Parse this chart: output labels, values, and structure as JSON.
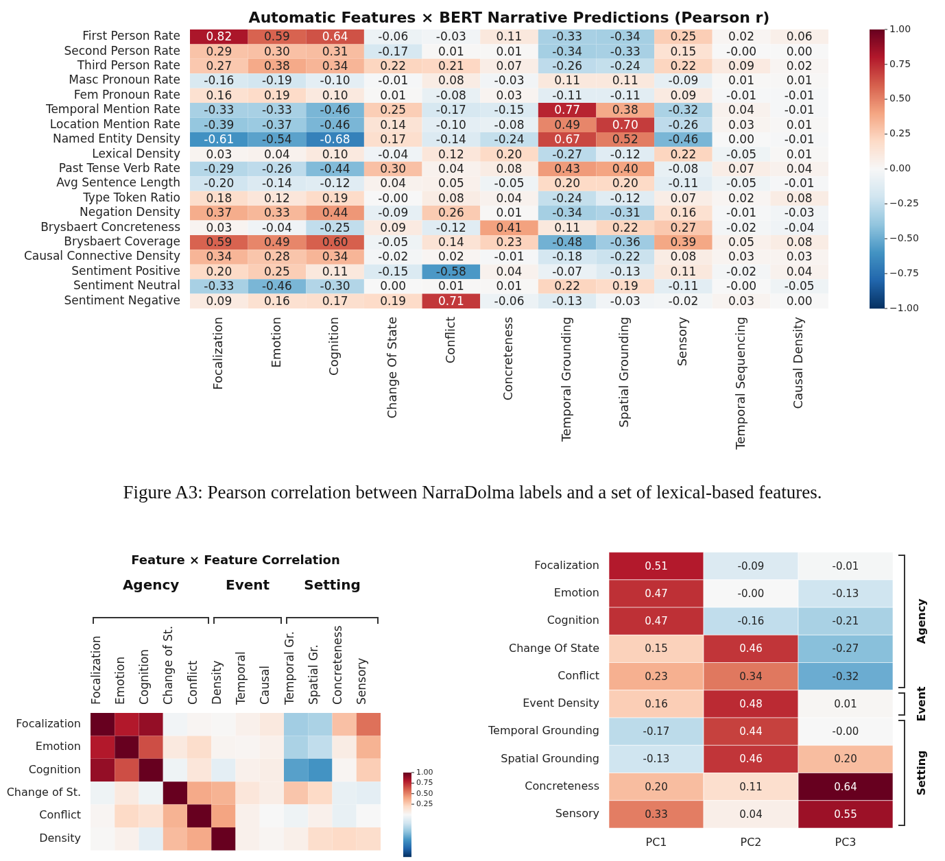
{
  "chart_data": [
    {
      "type": "heatmap",
      "title": "Automatic Features × BERT Narrative Predictions (Pearson r)",
      "categories": [
        "Focalization",
        "Emotion",
        "Cognition",
        "Change Of State",
        "Conflict",
        "Concreteness",
        "Temporal Grounding",
        "Spatial Grounding",
        "Sensory",
        "Temporal Sequencing",
        "Causal Density"
      ],
      "y_categories": [
        "First Person Rate",
        "Second Person Rate",
        "Third Person Rate",
        "Masc Pronoun Rate",
        "Fem Pronoun Rate",
        "Temporal Mention Rate",
        "Location Mention Rate",
        "Named Entity Density",
        "Lexical Density",
        "Past Tense Verb Rate",
        "Avg Sentence Length",
        "Type Token Ratio",
        "Negation Density",
        "Brysbaert Concreteness",
        "Brysbaert Coverage",
        "Causal Connective Density",
        "Sentiment Positive",
        "Sentiment Neutral",
        "Sentiment Negative"
      ],
      "cells": [
        [
          0.82,
          0.59,
          0.64,
          -0.06,
          -0.03,
          0.11,
          -0.33,
          -0.34,
          0.25,
          0.02,
          0.06
        ],
        [
          0.29,
          0.3,
          0.31,
          -0.17,
          0.01,
          0.01,
          -0.34,
          -0.33,
          0.15,
          -0.0,
          0.0
        ],
        [
          0.27,
          0.38,
          0.34,
          0.22,
          0.21,
          0.07,
          -0.26,
          -0.24,
          0.22,
          0.09,
          0.02
        ],
        [
          -0.16,
          -0.19,
          -0.1,
          -0.01,
          0.08,
          -0.03,
          0.11,
          0.11,
          -0.09,
          0.01,
          0.01
        ],
        [
          0.16,
          0.19,
          0.1,
          0.01,
          -0.08,
          0.03,
          -0.11,
          -0.11,
          0.09,
          -0.01,
          -0.01
        ],
        [
          -0.33,
          -0.33,
          -0.46,
          0.25,
          -0.17,
          -0.15,
          0.77,
          0.38,
          -0.32,
          0.04,
          -0.01
        ],
        [
          -0.39,
          -0.37,
          -0.46,
          0.14,
          -0.1,
          -0.08,
          0.49,
          0.7,
          -0.26,
          0.03,
          0.01
        ],
        [
          -0.61,
          -0.54,
          -0.68,
          0.17,
          -0.14,
          -0.24,
          0.67,
          0.52,
          -0.46,
          0.0,
          -0.01
        ],
        [
          0.03,
          0.04,
          0.1,
          -0.04,
          0.12,
          0.2,
          -0.27,
          -0.12,
          0.22,
          -0.05,
          0.01
        ],
        [
          -0.29,
          -0.26,
          -0.44,
          0.3,
          0.04,
          0.08,
          0.43,
          0.4,
          -0.08,
          0.07,
          0.04
        ],
        [
          -0.2,
          -0.14,
          -0.12,
          0.04,
          0.05,
          -0.05,
          0.2,
          0.2,
          -0.11,
          -0.05,
          -0.01
        ],
        [
          0.18,
          0.12,
          0.19,
          -0.0,
          0.08,
          0.04,
          -0.24,
          -0.12,
          0.07,
          0.02,
          0.08
        ],
        [
          0.37,
          0.33,
          0.44,
          -0.09,
          0.26,
          0.01,
          -0.34,
          -0.31,
          0.16,
          -0.01,
          -0.03
        ],
        [
          0.03,
          -0.04,
          -0.25,
          0.09,
          -0.12,
          0.41,
          0.11,
          0.22,
          0.27,
          -0.02,
          -0.04
        ],
        [
          0.59,
          0.49,
          0.6,
          -0.05,
          0.14,
          0.23,
          -0.48,
          -0.36,
          0.39,
          0.05,
          0.08
        ],
        [
          0.34,
          0.28,
          0.34,
          -0.02,
          0.02,
          -0.01,
          -0.18,
          -0.22,
          0.08,
          0.03,
          0.03
        ],
        [
          0.2,
          0.25,
          0.11,
          -0.15,
          -0.58,
          0.04,
          -0.07,
          -0.13,
          0.11,
          -0.02,
          0.04
        ],
        [
          -0.33,
          -0.46,
          -0.3,
          0.0,
          0.01,
          0.01,
          0.22,
          0.19,
          -0.11,
          -0.0,
          -0.05
        ],
        [
          0.09,
          0.16,
          0.17,
          0.19,
          0.71,
          -0.06,
          -0.13,
          -0.03,
          -0.02,
          0.03,
          0.0
        ]
      ],
      "cell_labels": [
        [
          "0.82",
          "0.59",
          "0.64",
          "-0.06",
          "-0.03",
          "0.11",
          "-0.33",
          "-0.34",
          "0.25",
          "0.02",
          "0.06"
        ],
        [
          "0.29",
          "0.30",
          "0.31",
          "-0.17",
          "0.01",
          "0.01",
          "-0.34",
          "-0.33",
          "0.15",
          "-0.00",
          "0.00"
        ],
        [
          "0.27",
          "0.38",
          "0.34",
          "0.22",
          "0.21",
          "0.07",
          "-0.26",
          "-0.24",
          "0.22",
          "0.09",
          "0.02"
        ],
        [
          "-0.16",
          "-0.19",
          "-0.10",
          "-0.01",
          "0.08",
          "-0.03",
          "0.11",
          "0.11",
          "-0.09",
          "0.01",
          "0.01"
        ],
        [
          "0.16",
          "0.19",
          "0.10",
          "0.01",
          "-0.08",
          "0.03",
          "-0.11",
          "-0.11",
          "0.09",
          "-0.01",
          "-0.01"
        ],
        [
          "-0.33",
          "-0.33",
          "-0.46",
          "0.25",
          "-0.17",
          "-0.15",
          "0.77",
          "0.38",
          "-0.32",
          "0.04",
          "-0.01"
        ],
        [
          "-0.39",
          "-0.37",
          "-0.46",
          "0.14",
          "-0.10",
          "-0.08",
          "0.49",
          "0.70",
          "-0.26",
          "0.03",
          "0.01"
        ],
        [
          "-0.61",
          "-0.54",
          "-0.68",
          "0.17",
          "-0.14",
          "-0.24",
          "0.67",
          "0.52",
          "-0.46",
          "0.00",
          "-0.01"
        ],
        [
          "0.03",
          "0.04",
          "0.10",
          "-0.04",
          "0.12",
          "0.20",
          "-0.27",
          "-0.12",
          "0.22",
          "-0.05",
          "0.01"
        ],
        [
          "-0.29",
          "-0.26",
          "-0.44",
          "0.30",
          "0.04",
          "0.08",
          "0.43",
          "0.40",
          "-0.08",
          "0.07",
          "0.04"
        ],
        [
          "-0.20",
          "-0.14",
          "-0.12",
          "0.04",
          "0.05",
          "-0.05",
          "0.20",
          "0.20",
          "-0.11",
          "-0.05",
          "-0.01"
        ],
        [
          "0.18",
          "0.12",
          "0.19",
          "-0.00",
          "0.08",
          "0.04",
          "-0.24",
          "-0.12",
          "0.07",
          "0.02",
          "0.08"
        ],
        [
          "0.37",
          "0.33",
          "0.44",
          "-0.09",
          "0.26",
          "0.01",
          "-0.34",
          "-0.31",
          "0.16",
          "-0.01",
          "-0.03"
        ],
        [
          "0.03",
          "-0.04",
          "-0.25",
          "0.09",
          "-0.12",
          "0.41",
          "0.11",
          "0.22",
          "0.27",
          "-0.02",
          "-0.04"
        ],
        [
          "0.59",
          "0.49",
          "0.60",
          "-0.05",
          "0.14",
          "0.23",
          "-0.48",
          "-0.36",
          "0.39",
          "0.05",
          "0.08"
        ],
        [
          "0.34",
          "0.28",
          "0.34",
          "-0.02",
          "0.02",
          "-0.01",
          "-0.18",
          "-0.22",
          "0.08",
          "0.03",
          "0.03"
        ],
        [
          "0.20",
          "0.25",
          "0.11",
          "-0.15",
          "-0.58",
          "0.04",
          "-0.07",
          "-0.13",
          "0.11",
          "-0.02",
          "0.04"
        ],
        [
          "-0.33",
          "-0.46",
          "-0.30",
          "0.00",
          "0.01",
          "0.01",
          "0.22",
          "0.19",
          "-0.11",
          "-0.00",
          "-0.05"
        ],
        [
          "0.09",
          "0.16",
          "0.17",
          "0.19",
          "0.71",
          "-0.06",
          "-0.13",
          "-0.03",
          "-0.02",
          "0.03",
          "0.00"
        ]
      ],
      "clim": [
        -1,
        1
      ],
      "cticks": [
        {
          "value": 1,
          "label": "1.00"
        },
        {
          "value": 0.75,
          "label": "0.75"
        },
        {
          "value": 0.5,
          "label": "0.50"
        },
        {
          "value": 0.25,
          "label": "0.25"
        },
        {
          "value": 0,
          "label": "0.00"
        },
        {
          "value": -0.25,
          "label": "−0.25"
        },
        {
          "value": -0.5,
          "label": "−0.50"
        },
        {
          "value": -0.75,
          "label": "−0.75"
        },
        {
          "value": -1,
          "label": "−1.00"
        }
      ],
      "annotations": [
        "Figure A3: Pearson correlation between NarraDolma labels and a set of lexical-based features."
      ]
    },
    {
      "type": "heatmap",
      "title": "Feature × Feature Correlation",
      "categories": [
        "Focalization",
        "Emotion",
        "Cognition",
        "Change of St.",
        "Conflict",
        "Density",
        "Temporal",
        "Causal",
        "Temporal Gr.",
        "Spatial Gr.",
        "Concreteness",
        "Sensory"
      ],
      "y_categories": [
        "Focalization",
        "Emotion",
        "Cognition",
        "Change of St.",
        "Conflict",
        "Density"
      ],
      "cells": [
        [
          1.0,
          0.8,
          0.88,
          -0.03,
          0.02,
          0.01,
          0.05,
          0.1,
          -0.35,
          -0.32,
          0.3,
          0.55
        ],
        [
          0.8,
          1.0,
          0.65,
          0.1,
          0.18,
          0.03,
          0.02,
          0.05,
          -0.32,
          -0.25,
          0.08,
          0.35
        ],
        [
          0.88,
          0.65,
          1.0,
          -0.05,
          0.12,
          -0.1,
          0.05,
          0.07,
          -0.55,
          -0.6,
          0.02,
          0.25
        ],
        [
          -0.05,
          0.1,
          -0.05,
          1.0,
          0.38,
          0.35,
          0.12,
          0.07,
          0.28,
          0.2,
          -0.08,
          -0.1
        ],
        [
          0.02,
          0.2,
          0.15,
          0.35,
          1.0,
          0.4,
          0.05,
          0.0,
          -0.05,
          0.05,
          -0.08,
          0.0
        ],
        [
          0.01,
          0.05,
          -0.1,
          0.32,
          0.38,
          1.0,
          0.05,
          0.02,
          0.06,
          0.18,
          0.2,
          0.18
        ]
      ],
      "clim": [
        -1,
        1
      ],
      "cticks": [
        {
          "value": 1,
          "label": "1.00"
        },
        {
          "value": 0.75,
          "label": "0.75"
        },
        {
          "value": 0.5,
          "label": "0.50"
        },
        {
          "value": 0.25,
          "label": "0.25"
        }
      ],
      "annotations": [
        "Agency",
        "Event",
        "Setting"
      ]
    },
    {
      "type": "heatmap",
      "categories": [
        "PC1",
        "PC2",
        "PC3"
      ],
      "y_categories": [
        "Focalization",
        "Emotion",
        "Cognition",
        "Change Of State",
        "Conflict",
        "Event Density",
        "Temporal Grounding",
        "Spatial Grounding",
        "Concreteness",
        "Sensory"
      ],
      "cells": [
        [
          0.51,
          -0.09,
          -0.01
        ],
        [
          0.47,
          -0.0,
          -0.13
        ],
        [
          0.47,
          -0.16,
          -0.21
        ],
        [
          0.15,
          0.46,
          -0.27
        ],
        [
          0.23,
          0.34,
          -0.32
        ],
        [
          0.16,
          0.48,
          0.01
        ],
        [
          -0.17,
          0.44,
          -0.0
        ],
        [
          -0.13,
          0.46,
          0.2
        ],
        [
          0.2,
          0.11,
          0.64
        ],
        [
          0.33,
          0.04,
          0.55
        ]
      ],
      "cell_labels": [
        [
          "0.51",
          "-0.09",
          "-0.01"
        ],
        [
          "0.47",
          "-0.00",
          "-0.13"
        ],
        [
          "0.47",
          "-0.16",
          "-0.21"
        ],
        [
          "0.15",
          "0.46",
          "-0.27"
        ],
        [
          "0.23",
          "0.34",
          "-0.32"
        ],
        [
          "0.16",
          "0.48",
          "0.01"
        ],
        [
          "-0.17",
          "0.44",
          "-0.00"
        ],
        [
          "-0.13",
          "0.46",
          "0.20"
        ],
        [
          "0.20",
          "0.11",
          "0.64"
        ],
        [
          "0.33",
          "0.04",
          "0.55"
        ]
      ],
      "annotations": [
        "Agency",
        "Event",
        "Setting"
      ]
    }
  ]
}
